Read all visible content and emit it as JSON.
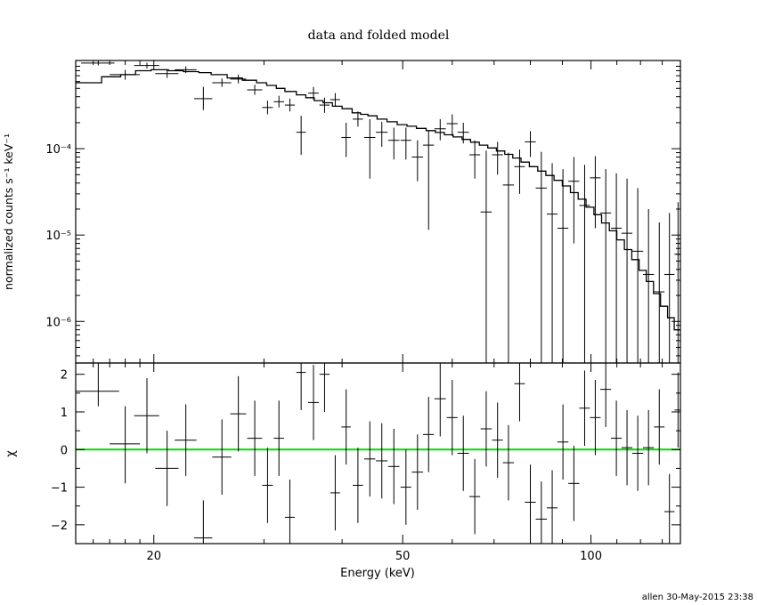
{
  "chart_data": {
    "type": "scatter",
    "title": "data and folded model",
    "xlabel": "Energy (keV)",
    "x_scale": "log",
    "xlim": [
      15,
      139
    ],
    "x_ticks": [
      20,
      50,
      100
    ],
    "footer": "allen 30-May-2015 23:38",
    "panels": [
      {
        "name": "spectrum",
        "ylabel": "normalized counts s⁻¹ keV⁻¹",
        "y_scale": "log",
        "ylim": [
          3.3e-07,
          0.00105
        ],
        "y_ticks": [
          {
            "value": 0.0001,
            "label": "10⁻⁴"
          },
          {
            "value": 1e-05,
            "label": "10⁻⁵"
          },
          {
            "value": 1e-06,
            "label": "10⁻⁶"
          }
        ],
        "data": [
          {
            "x": 16.3,
            "xw": 1.0,
            "y": 0.00098,
            "ylo": 0.00092,
            "yhi": 0.00105
          },
          {
            "x": 18.0,
            "xw": 1.0,
            "y": 0.00072,
            "ylo": 0.00063,
            "yhi": 0.00082
          },
          {
            "x": 19.5,
            "xw": 0.9,
            "y": 0.00092,
            "ylo": 0.00085,
            "yhi": 0.00099
          },
          {
            "x": 21.0,
            "xw": 0.9,
            "y": 0.00074,
            "ylo": 0.00066,
            "yhi": 0.00083
          },
          {
            "x": 22.5,
            "xw": 0.9,
            "y": 0.00082,
            "ylo": 0.00075,
            "yhi": 0.0009
          },
          {
            "x": 24.0,
            "xw": 0.8,
            "y": 0.00038,
            "ylo": 0.00028,
            "yhi": 0.00052
          },
          {
            "x": 25.7,
            "xw": 0.9,
            "y": 0.00058,
            "ylo": 0.00052,
            "yhi": 0.00065
          },
          {
            "x": 27.3,
            "xw": 0.8,
            "y": 0.00064,
            "ylo": 0.00057,
            "yhi": 0.00072
          },
          {
            "x": 29.0,
            "xw": 0.8,
            "y": 0.00048,
            "ylo": 0.00042,
            "yhi": 0.00055
          },
          {
            "x": 30.4,
            "xw": 0.6,
            "y": 0.0003,
            "ylo": 0.00025,
            "yhi": 0.00036
          },
          {
            "x": 31.7,
            "xw": 0.6,
            "y": 0.00035,
            "ylo": 0.0003,
            "yhi": 0.00041
          },
          {
            "x": 33.0,
            "xw": 0.6,
            "y": 0.00032,
            "ylo": 0.00027,
            "yhi": 0.00038
          },
          {
            "x": 34.4,
            "xw": 0.6,
            "y": 0.000155,
            "ylo": 8.5e-05,
            "yhi": 0.00024
          },
          {
            "x": 36.0,
            "xw": 0.7,
            "y": 0.00044,
            "ylo": 0.00037,
            "yhi": 0.00052
          },
          {
            "x": 37.5,
            "xw": 0.7,
            "y": 0.00032,
            "ylo": 0.00026,
            "yhi": 0.00039
          },
          {
            "x": 39.0,
            "xw": 0.7,
            "y": 0.00037,
            "ylo": 0.00031,
            "yhi": 0.00044
          },
          {
            "x": 40.6,
            "xw": 0.7,
            "y": 0.000135,
            "ylo": 8e-05,
            "yhi": 0.0002
          },
          {
            "x": 42.4,
            "xw": 0.8,
            "y": 0.00022,
            "ylo": 0.00018,
            "yhi": 0.00027
          },
          {
            "x": 44.3,
            "xw": 0.9,
            "y": 0.000135,
            "ylo": 4.5e-05,
            "yhi": 0.00022
          },
          {
            "x": 46.3,
            "xw": 1.0,
            "y": 0.000155,
            "ylo": 0.000105,
            "yhi": 0.000205
          },
          {
            "x": 48.4,
            "xw": 1.0,
            "y": 0.000125,
            "ylo": 7.5e-05,
            "yhi": 0.000175
          },
          {
            "x": 50.6,
            "xw": 1.0,
            "y": 0.000125,
            "ylo": 7.5e-05,
            "yhi": 0.000175
          },
          {
            "x": 52.8,
            "xw": 1.1,
            "y": 8e-05,
            "ylo": 4.2e-05,
            "yhi": 0.000125
          },
          {
            "x": 55.0,
            "xw": 1.1,
            "y": 0.00011,
            "ylo": 1.15e-05,
            "yhi": 0.00016
          },
          {
            "x": 57.4,
            "xw": 1.2,
            "y": 0.00017,
            "ylo": 0.000125,
            "yhi": 0.00022
          },
          {
            "x": 60.0,
            "xw": 1.2,
            "y": 0.000195,
            "ylo": 0.00014,
            "yhi": 0.00025
          },
          {
            "x": 62.5,
            "xw": 1.3,
            "y": 0.000155,
            "ylo": 0.000115,
            "yhi": 0.0002
          },
          {
            "x": 65.2,
            "xw": 1.3,
            "y": 8.5e-05,
            "ylo": 4.5e-05,
            "yhi": 0.000125
          },
          {
            "x": 68.0,
            "xw": 1.4,
            "y": 1.85e-05,
            "ylo": 3.3e-07,
            "yhi": 9.5e-05
          },
          {
            "x": 70.9,
            "xw": 1.4,
            "y": 8.5e-05,
            "ylo": 5e-05,
            "yhi": 0.00012
          },
          {
            "x": 73.8,
            "xw": 1.5,
            "y": 3.8e-05,
            "ylo": 3.3e-07,
            "yhi": 9e-05
          },
          {
            "x": 76.9,
            "xw": 1.5,
            "y": 6.2e-05,
            "ylo": 3e-05,
            "yhi": 9.8e-05
          },
          {
            "x": 80.0,
            "xw": 1.6,
            "y": 0.00012,
            "ylo": 8e-05,
            "yhi": 0.00016
          },
          {
            "x": 83.3,
            "xw": 1.7,
            "y": 3.5e-05,
            "ylo": 3.3e-07,
            "yhi": 9.2e-05
          },
          {
            "x": 86.7,
            "xw": 1.7,
            "y": 1.75e-05,
            "ylo": 3.3e-07,
            "yhi": 6.8e-05
          },
          {
            "x": 90.2,
            "xw": 1.8,
            "y": 1.2e-05,
            "ylo": 3.3e-07,
            "yhi": 5.8e-05
          },
          {
            "x": 93.9,
            "xw": 1.9,
            "y": 4.2e-05,
            "ylo": 8e-06,
            "yhi": 8e-05
          },
          {
            "x": 97.7,
            "xw": 1.9,
            "y": 2.2e-05,
            "ylo": 3.3e-07,
            "yhi": 6.5e-05
          },
          {
            "x": 101.6,
            "xw": 2.0,
            "y": 4.6e-05,
            "ylo": 1.2e-05,
            "yhi": 8.2e-05
          },
          {
            "x": 105.6,
            "xw": 2.1,
            "y": 1.8e-05,
            "ylo": 3.3e-07,
            "yhi": 5.8e-05
          },
          {
            "x": 109.8,
            "xw": 2.2,
            "y": 1.2e-05,
            "ylo": 3.3e-07,
            "yhi": 5.2e-05
          },
          {
            "x": 114.2,
            "xw": 2.3,
            "y": 1.05e-05,
            "ylo": 3.3e-07,
            "yhi": 4.5e-05
          },
          {
            "x": 118.8,
            "xw": 2.4,
            "y": 6.5e-06,
            "ylo": 3.3e-07,
            "yhi": 3.5e-05
          },
          {
            "x": 123.6,
            "xw": 2.5,
            "y": 3.5e-06,
            "ylo": 3.3e-07,
            "yhi": 2e-05
          },
          {
            "x": 128.6,
            "xw": 2.5,
            "y": 2.2e-06,
            "ylo": 3.3e-07,
            "yhi": 1.4e-05
          },
          {
            "x": 133.5,
            "xw": 2.5,
            "y": 3.5e-06,
            "ylo": 3.3e-07,
            "yhi": 1.8e-05
          },
          {
            "x": 137.8,
            "xw": 1.8,
            "y": 6e-06,
            "ylo": 3.3e-07,
            "yhi": 2.4e-05
          }
        ],
        "model_edges": [
          15.0,
          16.5,
          17.7,
          18.7,
          19.8,
          21.1,
          22.3,
          23.6,
          24.7,
          26.2,
          27.7,
          29.2,
          30.3,
          31.4,
          32.4,
          33.8,
          35.0,
          36.1,
          37.3,
          38.6,
          40.0,
          41.5,
          42.8,
          44.0,
          45.5,
          47.2,
          49.0,
          50.8,
          52.6,
          54.5,
          56.4,
          58.3,
          60.2,
          62.2,
          64.2,
          66.3,
          68.4,
          70.6,
          72.8,
          75.0,
          77.3,
          79.7,
          82.2,
          84.7,
          87.3,
          90.0,
          92.7,
          95.4,
          98.2,
          101.1,
          104.0,
          107.0,
          110.0,
          113.1,
          116.2,
          119.4,
          122.6,
          125.9,
          129.2,
          132.6,
          135.9,
          139.0
        ],
        "model_values": [
          0.00058,
          0.00068,
          0.00072,
          0.0008,
          0.00082,
          0.0008,
          0.00078,
          0.00076,
          0.00072,
          0.00066,
          0.00062,
          0.00058,
          0.00054,
          0.0005,
          0.00046,
          0.00042,
          0.00039,
          0.00036,
          0.00034,
          0.00031,
          0.00029,
          0.00026,
          0.00025,
          0.00024,
          0.00022,
          0.000205,
          0.00019,
          0.000182,
          0.000172,
          0.000162,
          0.000154,
          0.000145,
          0.000137,
          0.000128,
          0.000119,
          0.00011,
          0.000102,
          9.4e-05,
          8.6e-05,
          7.8e-05,
          7e-05,
          6.2e-05,
          5.5e-05,
          4.9e-05,
          4.3e-05,
          3.7e-05,
          3.1e-05,
          2.6e-05,
          2.1e-05,
          1.72e-05,
          1.38e-05,
          1.12e-05,
          8.8e-06,
          6.8e-06,
          5.2e-06,
          3.9e-06,
          2.9e-06,
          2.1e-06,
          1.5e-06,
          1.1e-06,
          8e-07
        ]
      },
      {
        "name": "residuals",
        "ylabel": "χ",
        "y_scale": "linear",
        "ylim": [
          -2.5,
          2.3
        ],
        "y_ticks": [
          {
            "value": 2,
            "label": "2"
          },
          {
            "value": 1,
            "label": "1"
          },
          {
            "value": 0,
            "label": "0"
          },
          {
            "value": -1,
            "label": "−1"
          },
          {
            "value": -2,
            "label": "−2"
          }
        ],
        "zero_line_color": "#00dd00",
        "data": [
          {
            "x": 16.3,
            "xw": 1.3,
            "y": 1.55,
            "ylo": 1.15,
            "yhi": 2.3
          },
          {
            "x": 18.0,
            "xw": 1.0,
            "y": 0.15,
            "ylo": -0.9,
            "yhi": 1.15
          },
          {
            "x": 19.5,
            "xw": 0.9,
            "y": 0.9,
            "ylo": -0.1,
            "yhi": 1.9
          },
          {
            "x": 21.0,
            "xw": 0.9,
            "y": -0.5,
            "ylo": -1.5,
            "yhi": 0.5
          },
          {
            "x": 22.5,
            "xw": 0.9,
            "y": 0.25,
            "ylo": -0.7,
            "yhi": 1.2
          },
          {
            "x": 24.0,
            "xw": 0.8,
            "y": -2.35,
            "ylo": -2.5,
            "yhi": -1.35
          },
          {
            "x": 25.7,
            "xw": 0.9,
            "y": -0.2,
            "ylo": -1.2,
            "yhi": 0.8
          },
          {
            "x": 27.3,
            "xw": 0.8,
            "y": 0.95,
            "ylo": -0.05,
            "yhi": 1.95
          },
          {
            "x": 29.0,
            "xw": 0.8,
            "y": 0.3,
            "ylo": -0.7,
            "yhi": 1.3
          },
          {
            "x": 30.4,
            "xw": 0.6,
            "y": -0.95,
            "ylo": -1.95,
            "yhi": 0.05
          },
          {
            "x": 31.7,
            "xw": 0.6,
            "y": 0.3,
            "ylo": -0.7,
            "yhi": 1.3
          },
          {
            "x": 33.0,
            "xw": 0.6,
            "y": -1.8,
            "ylo": -2.5,
            "yhi": -0.8
          },
          {
            "x": 34.4,
            "xw": 0.6,
            "y": 2.05,
            "ylo": 1.05,
            "yhi": 2.3
          },
          {
            "x": 36.0,
            "xw": 0.7,
            "y": 1.25,
            "ylo": 0.25,
            "yhi": 2.25
          },
          {
            "x": 37.5,
            "xw": 0.7,
            "y": 2.0,
            "ylo": 1.0,
            "yhi": 2.3
          },
          {
            "x": 39.0,
            "xw": 0.7,
            "y": -1.15,
            "ylo": -2.15,
            "yhi": -0.15
          },
          {
            "x": 40.6,
            "xw": 0.7,
            "y": 0.6,
            "ylo": -0.4,
            "yhi": 1.6
          },
          {
            "x": 42.4,
            "xw": 0.8,
            "y": -0.95,
            "ylo": -1.95,
            "yhi": 0.05
          },
          {
            "x": 44.3,
            "xw": 0.9,
            "y": -0.25,
            "ylo": -1.25,
            "yhi": 0.75
          },
          {
            "x": 46.3,
            "xw": 1.0,
            "y": -0.3,
            "ylo": -1.3,
            "yhi": 0.7
          },
          {
            "x": 48.4,
            "xw": 1.0,
            "y": -0.45,
            "ylo": -1.45,
            "yhi": 0.55
          },
          {
            "x": 50.6,
            "xw": 1.0,
            "y": -1.0,
            "ylo": -2.0,
            "yhi": 0.0
          },
          {
            "x": 52.8,
            "xw": 1.1,
            "y": -0.6,
            "ylo": -1.6,
            "yhi": 0.4
          },
          {
            "x": 55.0,
            "xw": 1.1,
            "y": 0.4,
            "ylo": -0.6,
            "yhi": 1.4
          },
          {
            "x": 57.4,
            "xw": 1.2,
            "y": 1.35,
            "ylo": 0.35,
            "yhi": 2.3
          },
          {
            "x": 60.0,
            "xw": 1.2,
            "y": 0.85,
            "ylo": -0.15,
            "yhi": 1.85
          },
          {
            "x": 62.5,
            "xw": 1.3,
            "y": -0.1,
            "ylo": -1.1,
            "yhi": 0.9
          },
          {
            "x": 65.2,
            "xw": 1.3,
            "y": -1.25,
            "ylo": -2.25,
            "yhi": -0.25
          },
          {
            "x": 68.0,
            "xw": 1.4,
            "y": 0.55,
            "ylo": -0.45,
            "yhi": 1.55
          },
          {
            "x": 70.9,
            "xw": 1.4,
            "y": 0.25,
            "ylo": -0.75,
            "yhi": 1.25
          },
          {
            "x": 73.8,
            "xw": 1.5,
            "y": -0.35,
            "ylo": -1.35,
            "yhi": 0.65
          },
          {
            "x": 76.9,
            "xw": 1.5,
            "y": 1.75,
            "ylo": 0.75,
            "yhi": 2.3
          },
          {
            "x": 80.0,
            "xw": 1.6,
            "y": -1.4,
            "ylo": -2.4,
            "yhi": -0.4
          },
          {
            "x": 83.3,
            "xw": 1.7,
            "y": -1.85,
            "ylo": -2.5,
            "yhi": -0.85
          },
          {
            "x": 86.7,
            "xw": 1.7,
            "y": -1.55,
            "ylo": -2.5,
            "yhi": -0.55
          },
          {
            "x": 90.2,
            "xw": 1.8,
            "y": 0.2,
            "ylo": -0.8,
            "yhi": 1.2
          },
          {
            "x": 93.9,
            "xw": 1.9,
            "y": -0.9,
            "ylo": -1.9,
            "yhi": 0.1
          },
          {
            "x": 97.7,
            "xw": 1.9,
            "y": 1.1,
            "ylo": 0.1,
            "yhi": 2.1
          },
          {
            "x": 101.6,
            "xw": 2.0,
            "y": 0.85,
            "ylo": -0.15,
            "yhi": 1.85
          },
          {
            "x": 105.6,
            "xw": 2.1,
            "y": 1.6,
            "ylo": 0.6,
            "yhi": 2.3
          },
          {
            "x": 109.8,
            "xw": 2.2,
            "y": 0.3,
            "ylo": -0.7,
            "yhi": 1.3
          },
          {
            "x": 114.2,
            "xw": 2.3,
            "y": 0.05,
            "ylo": -0.95,
            "yhi": 1.05
          },
          {
            "x": 118.8,
            "xw": 2.4,
            "y": -0.1,
            "ylo": -1.1,
            "yhi": 0.9
          },
          {
            "x": 123.6,
            "xw": 2.5,
            "y": 0.05,
            "ylo": -0.95,
            "yhi": 1.05
          },
          {
            "x": 128.6,
            "xw": 2.5,
            "y": 0.6,
            "ylo": -0.4,
            "yhi": 1.6
          },
          {
            "x": 133.5,
            "xw": 2.5,
            "y": -1.65,
            "ylo": -2.5,
            "yhi": -0.65
          },
          {
            "x": 137.8,
            "xw": 1.8,
            "y": 1.05,
            "ylo": 0.05,
            "yhi": 2.05
          }
        ]
      }
    ]
  }
}
